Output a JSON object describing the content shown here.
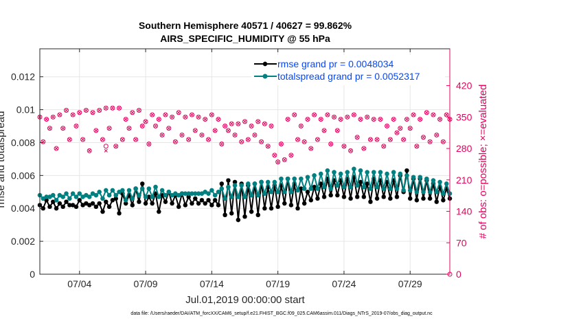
{
  "chart_data": {
    "type": "line",
    "title": "Southern Hemisphere 40571 / 40627 = 99.862%",
    "subtitle": "AIRS_SPECIFIC_HUMIDITY @ 55 hPa",
    "xlabel": "Jul.01,2019 00:00:00 start",
    "ylabel": "rmse and totalspread",
    "ylabel_right": "# of obs: o=possible; ×=evaluated",
    "footnote": "data file: /Users/raeder/DAI/ATM_forcXX/CAM6_setup/f.e21.FHIST_BGC.f09_025.CAM6assim.011/Diags_NTrS_2019-07/obs_diag_output.nc",
    "xlim": [
      1.0,
      32.0
    ],
    "ylim": [
      0,
      0.0137
    ],
    "ylim_right": [
      0,
      502
    ],
    "grid": true,
    "x_ticks": [
      4,
      9,
      14,
      19,
      24,
      29
    ],
    "x_tick_labels": [
      "07/04",
      "07/09",
      "07/14",
      "07/19",
      "07/24",
      "07/29"
    ],
    "y_ticks": [
      0,
      0.002,
      0.004,
      0.006,
      0.008,
      0.01,
      0.012
    ],
    "y_tick_labels": [
      "0",
      "0.002",
      "0.004",
      "0.006",
      "0.008",
      "0.01",
      "0.012"
    ],
    "y_right_ticks": [
      0,
      70,
      140,
      210,
      280,
      350,
      420
    ],
    "y_right_tick_labels": [
      "0",
      "70",
      "140",
      "210",
      "280",
      "350",
      "420"
    ],
    "legend": {
      "position": "top-right",
      "entries": [
        "rmse grand pr = 0.0048034",
        "totalspread grand pr = 0.0052317"
      ]
    },
    "x_start": 1.0,
    "x_step": 0.25,
    "series": [
      {
        "name": "rmse grand pr = 0.0048034",
        "color": "#000000",
        "marker": "star",
        "axis": "left",
        "values": [
          0.0042,
          0.004,
          0.0045,
          0.0041,
          0.0044,
          0.004,
          0.0043,
          0.0041,
          0.0044,
          0.0042,
          0.0042,
          0.0041,
          0.0045,
          0.0042,
          0.0043,
          0.0042,
          0.0043,
          0.0041,
          0.0043,
          0.0038,
          0.0044,
          0.0041,
          0.0045,
          0.0046,
          0.0037,
          0.0049,
          0.0043,
          0.0048,
          0.0042,
          0.0052,
          0.0044,
          0.0055,
          0.0043,
          0.0047,
          0.0043,
          0.0049,
          0.0038,
          0.0048,
          0.0044,
          0.005,
          0.0043,
          0.0048,
          0.0041,
          0.0049,
          0.0042,
          0.0047,
          0.0043,
          0.0046,
          0.0043,
          0.0045,
          0.0043,
          0.0045,
          0.0042,
          0.0045,
          0.0042,
          0.0055,
          0.0036,
          0.0057,
          0.0037,
          0.0056,
          0.0033,
          0.0055,
          0.0035,
          0.0054,
          0.0038,
          0.0055,
          0.0036,
          0.0056,
          0.004,
          0.0053,
          0.004,
          0.0054,
          0.0041,
          0.0054,
          0.0043,
          0.0058,
          0.0042,
          0.0055,
          0.004,
          0.0052,
          0.0043,
          0.005,
          0.0045,
          0.0053,
          0.0046,
          0.0055,
          0.0047,
          0.0058,
          0.0048,
          0.0057,
          0.0048,
          0.0057,
          0.0047,
          0.0058,
          0.0046,
          0.0059,
          0.0047,
          0.0056,
          0.0047,
          0.0055,
          0.0044,
          0.0058,
          0.0046,
          0.0057,
          0.0047,
          0.0056,
          0.0046,
          0.0057,
          0.0047,
          0.006,
          0.005,
          0.0063,
          0.0046,
          0.0058,
          0.0045,
          0.0058,
          0.0046,
          0.0057,
          0.0046,
          0.0055,
          0.0044,
          0.0053,
          0.0045,
          0.0052,
          0.0046
        ]
      },
      {
        "name": "totalspread grand pr = 0.0052317",
        "color": "#008080",
        "marker": "circle",
        "axis": "left",
        "values": [
          0.0048,
          0.0046,
          0.0047,
          0.0047,
          0.0048,
          0.0045,
          0.0048,
          0.0047,
          0.0049,
          0.0046,
          0.0049,
          0.0047,
          0.0049,
          0.0047,
          0.0048,
          0.0047,
          0.0049,
          0.0048,
          0.005,
          0.0046,
          0.0051,
          0.0048,
          0.0051,
          0.0048,
          0.005,
          0.0051,
          0.0045,
          0.0051,
          0.0046,
          0.0052,
          0.0048,
          0.0052,
          0.0047,
          0.0052,
          0.0047,
          0.0053,
          0.0047,
          0.0051,
          0.0048,
          0.005,
          0.0048,
          0.0049,
          0.0048,
          0.0049,
          0.0049,
          0.0049,
          0.0049,
          0.0049,
          0.0049,
          0.0049,
          0.005,
          0.0049,
          0.0051,
          0.0048,
          0.005,
          0.0052,
          0.0046,
          0.0053,
          0.0047,
          0.0054,
          0.0047,
          0.0054,
          0.0047,
          0.0055,
          0.0048,
          0.0055,
          0.0048,
          0.0056,
          0.0049,
          0.0056,
          0.005,
          0.0056,
          0.005,
          0.0058,
          0.005,
          0.0058,
          0.005,
          0.0058,
          0.0051,
          0.0058,
          0.0052,
          0.0059,
          0.0052,
          0.006,
          0.0052,
          0.0061,
          0.0053,
          0.0063,
          0.0052,
          0.0062,
          0.0054,
          0.0061,
          0.0053,
          0.0062,
          0.0053,
          0.0064,
          0.0054,
          0.0063,
          0.0053,
          0.0062,
          0.0052,
          0.0062,
          0.0053,
          0.0062,
          0.0052,
          0.0061,
          0.0052,
          0.0062,
          0.0052,
          0.0061,
          0.0051,
          0.006,
          0.0051,
          0.0059,
          0.005,
          0.0059,
          0.005,
          0.0058,
          0.005,
          0.0057,
          0.005,
          0.0056,
          0.0049,
          0.0055,
          0.0049
        ]
      },
      {
        "name": "# of obs possible",
        "color": "#e8005c",
        "marker": "open-circle",
        "axis": "right",
        "values": [
          350,
          295,
          345,
          325,
          350,
          280,
          355,
          325,
          365,
          300,
          355,
          330,
          360,
          300,
          365,
          275,
          360,
          320,
          365,
          300,
          370,
          325,
          370,
          285,
          370,
          300,
          345,
          325,
          360,
          300,
          365,
          330,
          340,
          290,
          355,
          330,
          345,
          310,
          355,
          325,
          350,
          295,
          360,
          310,
          350,
          300,
          355,
          320,
          350,
          310,
          345,
          300,
          355,
          320,
          345,
          290,
          330,
          320,
          335,
          310,
          335,
          295,
          340,
          300,
          330,
          310,
          340,
          295,
          335,
          285,
          330,
          265,
          250,
          290,
          255,
          345,
          265,
          355,
          300,
          330,
          295,
          345,
          280,
          355,
          300,
          345,
          320,
          355,
          290,
          350,
          320,
          345,
          285,
          350,
          275,
          355,
          305,
          345,
          280,
          350,
          300,
          345,
          300,
          345,
          285,
          330,
          300,
          345,
          315,
          325,
          300,
          345,
          325,
          355,
          285,
          345,
          305,
          360,
          295,
          355,
          310,
          345,
          295,
          355,
          345
        ]
      },
      {
        "name": "# of obs evaluated",
        "color": "#e8005c",
        "marker": "x",
        "axis": "right",
        "values": [
          350,
          295,
          345,
          325,
          350,
          280,
          355,
          325,
          365,
          300,
          355,
          330,
          360,
          300,
          365,
          275,
          360,
          320,
          365,
          300,
          370,
          325,
          370,
          285,
          370,
          300,
          345,
          325,
          360,
          300,
          365,
          330,
          340,
          290,
          355,
          330,
          345,
          310,
          355,
          325,
          350,
          295,
          360,
          310,
          350,
          300,
          355,
          320,
          350,
          310,
          345,
          300,
          355,
          320,
          345,
          290,
          330,
          320,
          335,
          310,
          335,
          295,
          340,
          300,
          330,
          310,
          340,
          295,
          335,
          285,
          330,
          265,
          250,
          290,
          255,
          345,
          265,
          355,
          300,
          330,
          295,
          345,
          280,
          355,
          300,
          345,
          320,
          355,
          290,
          350,
          320,
          345,
          285,
          350,
          275,
          355,
          305,
          345,
          280,
          350,
          300,
          345,
          300,
          345,
          285,
          330,
          300,
          345,
          315,
          325,
          300,
          345,
          325,
          355,
          285,
          345,
          305,
          360,
          295,
          355,
          310,
          345,
          295,
          355,
          345
        ]
      }
    ],
    "outliers": [
      {
        "series": "# of obs possible",
        "x": 6.0,
        "value": 285
      },
      {
        "series": "# of obs evaluated",
        "x": 6.0,
        "value": 275
      },
      {
        "series": "# of obs possible",
        "x": 32.0,
        "value": 0
      }
    ]
  }
}
